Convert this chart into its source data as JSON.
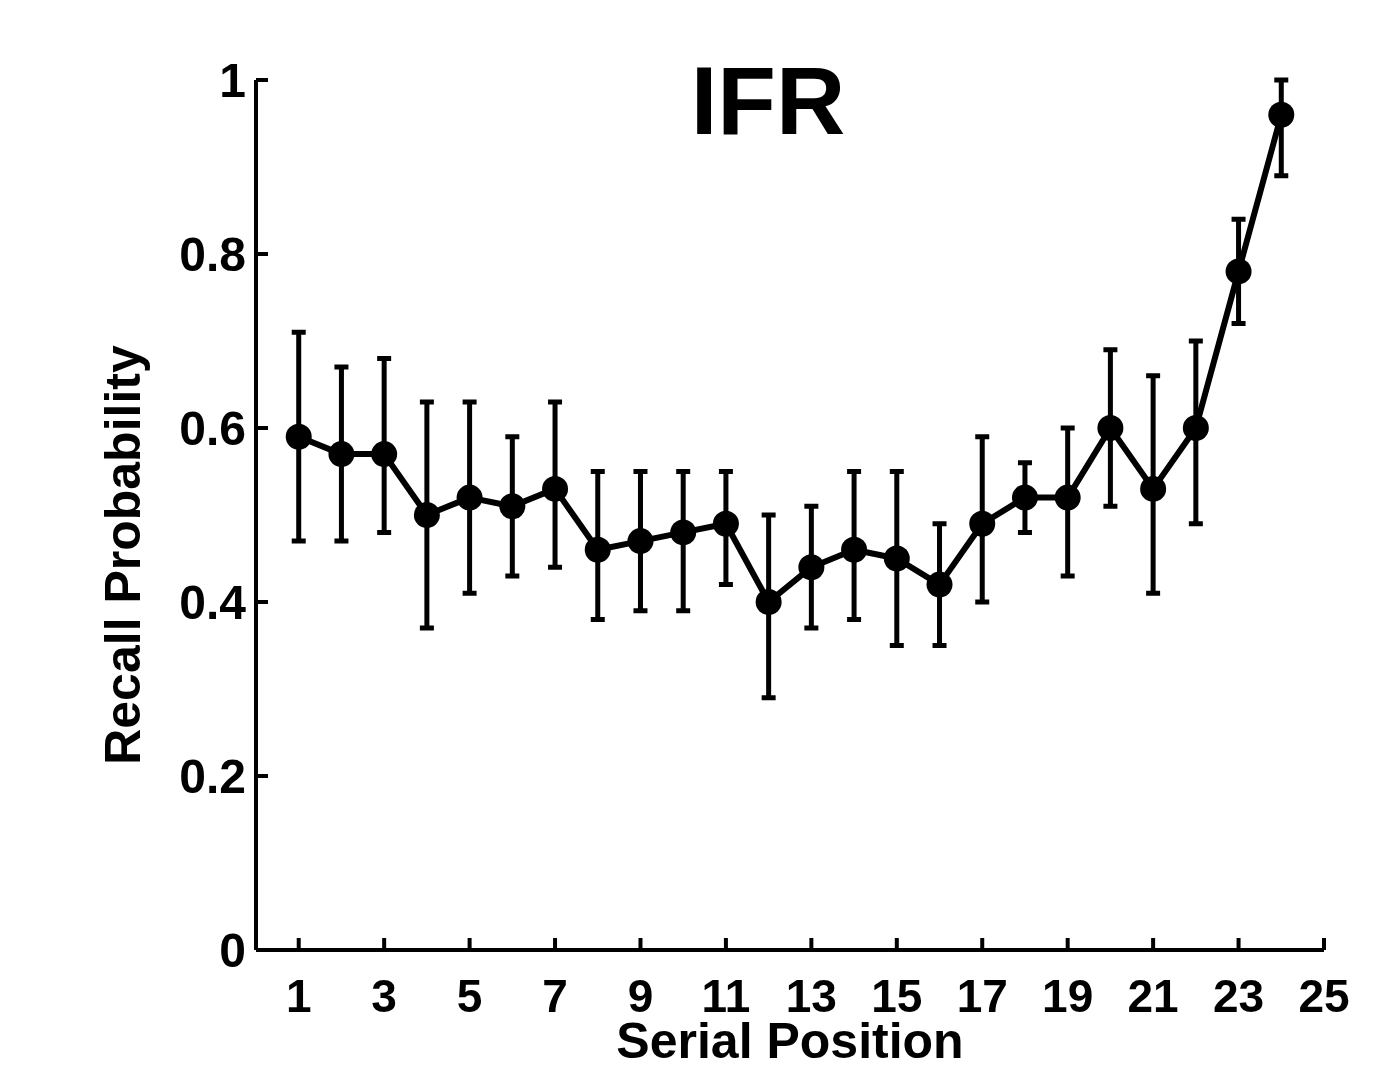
{
  "chart_data": {
    "type": "line",
    "title": "IFR",
    "xlabel": "Serial Position",
    "ylabel": "Recall Probability",
    "x": [
      1,
      2,
      3,
      4,
      5,
      6,
      7,
      8,
      9,
      10,
      11,
      12,
      13,
      14,
      15,
      16,
      17,
      18,
      19,
      20,
      21,
      22,
      23,
      24
    ],
    "series": [
      {
        "color": "#000000",
        "values": [
          0.59,
          0.57,
          0.57,
          0.5,
          0.52,
          0.51,
          0.53,
          0.46,
          0.47,
          0.48,
          0.49,
          0.4,
          0.44,
          0.46,
          0.45,
          0.42,
          0.49,
          0.52,
          0.52,
          0.6,
          0.53,
          0.6,
          0.78,
          0.96
        ],
        "errors": [
          [
            0.47,
            0.71
          ],
          [
            0.47,
            0.67
          ],
          [
            0.48,
            0.68
          ],
          [
            0.37,
            0.63
          ],
          [
            0.41,
            0.63
          ],
          [
            0.43,
            0.59
          ],
          [
            0.44,
            0.63
          ],
          [
            0.38,
            0.55
          ],
          [
            0.39,
            0.55
          ],
          [
            0.39,
            0.55
          ],
          [
            0.42,
            0.55
          ],
          [
            0.29,
            0.5
          ],
          [
            0.37,
            0.51
          ],
          [
            0.38,
            0.55
          ],
          [
            0.35,
            0.55
          ],
          [
            0.35,
            0.49
          ],
          [
            0.4,
            0.59
          ],
          [
            0.48,
            0.56
          ],
          [
            0.43,
            0.6
          ],
          [
            0.51,
            0.69
          ],
          [
            0.41,
            0.66
          ],
          [
            0.49,
            0.7
          ],
          [
            0.72,
            0.84
          ],
          [
            0.89,
            1.0
          ]
        ]
      }
    ],
    "xlim": [
      0,
      25
    ],
    "xticks": [
      1,
      3,
      5,
      7,
      9,
      11,
      13,
      15,
      17,
      19,
      21,
      23,
      25
    ],
    "ylim": [
      0,
      1
    ],
    "yticks": [
      0,
      0.2,
      0.4,
      0.6,
      0.8,
      1
    ],
    "marker": "circle",
    "line_style": "solid",
    "grid": false
  }
}
